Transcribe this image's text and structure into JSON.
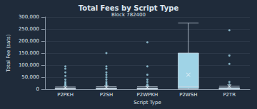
{
  "chart_data": {
    "type": "boxplot",
    "title": "Total Fees by Script Type",
    "subtitle": "Block 782400",
    "x_label": "Script Type",
    "y_label": "Total Fee (sats)",
    "categories": [
      "P2PKH",
      "P2SH",
      "P2WPKH",
      "P2WSH",
      "P2TR"
    ],
    "boxes": [
      [
        0,
        500,
        1500,
        4000,
        9000
      ],
      [
        0,
        500,
        1500,
        5000,
        10000
      ],
      [
        0,
        500,
        1500,
        5000,
        10000
      ],
      [
        0,
        3000,
        10000,
        150000,
        275000
      ],
      [
        0,
        500,
        2000,
        6000,
        12000
      ]
    ],
    "outliers": [
      [
        95000,
        85000,
        70000,
        55000,
        40000,
        30000,
        25000,
        20000,
        15000
      ],
      [
        150000,
        95000,
        85000,
        70000,
        60000,
        50000,
        40000,
        30000,
        25000,
        20000,
        15000
      ],
      [
        195000,
        95000,
        60000,
        40000,
        30000,
        20000,
        15000
      ],
      [],
      [
        245000,
        140000,
        105000,
        30000,
        20000
      ]
    ],
    "means": [
      6000,
      9000,
      7000,
      60000,
      12000
    ],
    "marker": "x",
    "color": "#9fd3e6",
    "ylim": [
      0,
      300000
    ],
    "yticks": [
      0,
      50000,
      100000,
      150000,
      200000,
      250000,
      300000
    ],
    "grid": true
  }
}
